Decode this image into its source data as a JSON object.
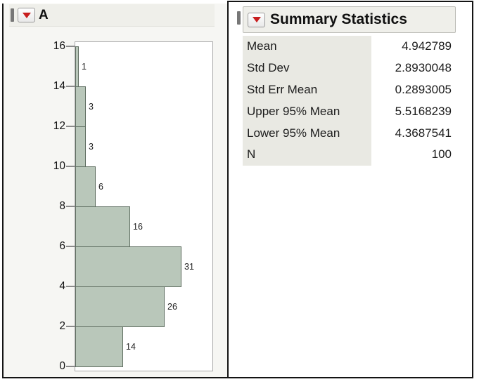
{
  "histogram_panel": {
    "title": "A",
    "menu_icon": "red-triangle-menu"
  },
  "summary_panel": {
    "title": "Summary Statistics",
    "menu_icon": "red-triangle-menu",
    "rows": [
      {
        "label": "Mean",
        "value": "4.942789"
      },
      {
        "label": "Std Dev",
        "value": "2.8930048"
      },
      {
        "label": "Std Err Mean",
        "value": "0.2893005"
      },
      {
        "label": "Upper 95% Mean",
        "value": "5.5168239"
      },
      {
        "label": "Lower 95% Mean",
        "value": "4.3687541"
      },
      {
        "label": "N",
        "value": "100"
      }
    ]
  },
  "chart_data": {
    "type": "bar",
    "orientation": "horizontal",
    "title": "A",
    "bin_edges": [
      0,
      2,
      4,
      6,
      8,
      10,
      12,
      14,
      16
    ],
    "categories": [
      "0-2",
      "2-4",
      "4-6",
      "6-8",
      "8-10",
      "10-12",
      "12-14",
      "14-16"
    ],
    "values": [
      14,
      26,
      31,
      16,
      6,
      3,
      3,
      1
    ],
    "bar_labels": [
      "14",
      "26",
      "31",
      "16",
      "6",
      "3",
      "3",
      "1"
    ],
    "value_axis": {
      "ticks": [
        0,
        2,
        4,
        6,
        8,
        10,
        12,
        14,
        16
      ],
      "range": [
        0,
        16.5
      ],
      "side": "left"
    },
    "count_axis": {
      "range": [
        0,
        40
      ],
      "visible": false
    },
    "grid": false,
    "legend": false,
    "total_n": 100
  },
  "colors": {
    "accent_red": "#c81e1e",
    "bar_fill": "#b9c7ba",
    "bar_border": "#5f6e61",
    "header_bg": "#efefea",
    "panel_bg": "#f6f6f3",
    "stats_label_bg": "#e9e9e3",
    "frame_border": "#a8a8a8",
    "cell_border": "#141414"
  }
}
